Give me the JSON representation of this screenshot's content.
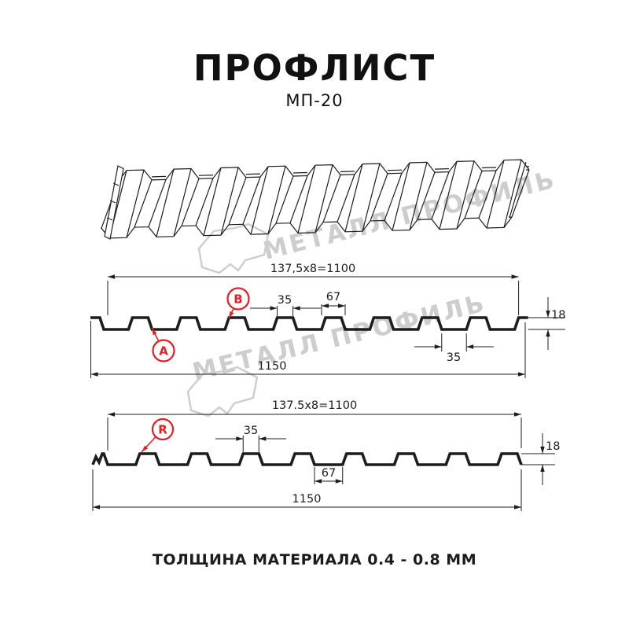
{
  "page": {
    "title": "ПРОФЛИСТ",
    "subtitle": "МП-20",
    "footer": "ТОЛЩИНА МАТЕРИАЛА 0.4 - 0.8 ММ"
  },
  "colors": {
    "accent_red": "#e31e24",
    "line": "#1d1d1d",
    "watermark": "#cdcdcd"
  },
  "watermark": {
    "text": "МЕТАЛЛ ПРОФИЛЬ",
    "logo_icon": "metall-profil-logo"
  },
  "diagram1": {
    "label_a": "A",
    "label_b": "B",
    "dims": {
      "pitch": "137,5x8=1100",
      "rib_top": "35",
      "rib_base": "67",
      "height": "18",
      "underside": "35",
      "total": "1150"
    }
  },
  "diagram2": {
    "label_r": "R",
    "dims": {
      "pitch": "137.5x8=1100",
      "rib_top": "35",
      "valley": "67",
      "height": "18",
      "total": "1150"
    }
  }
}
